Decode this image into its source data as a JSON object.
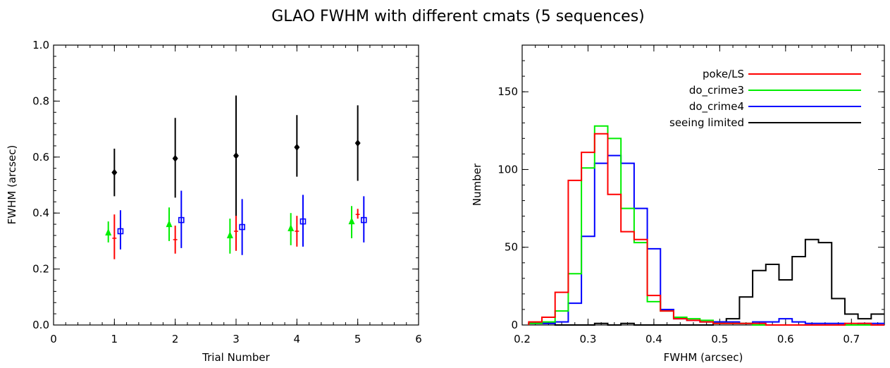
{
  "title": "GLAO FWHM with different cmats (5 sequences)",
  "colors": {
    "poke_ls": "#ff0000",
    "do_crime3": "#00ee00",
    "do_crime4": "#0000ff",
    "seeing": "#000000"
  },
  "chart_data": [
    {
      "type": "scatter",
      "title": "",
      "xlabel": "Trial Number",
      "ylabel": "FWHM (arcsec)",
      "xlim": [
        0,
        6
      ],
      "ylim": [
        0,
        1.0
      ],
      "xticks": [
        0,
        1,
        2,
        3,
        4,
        5,
        6
      ],
      "yticks": [
        0.0,
        0.2,
        0.4,
        0.6,
        0.8,
        1.0
      ],
      "ytick_labels": [
        "0.0",
        "0.2",
        "0.4",
        "0.6",
        "0.8",
        "1.0"
      ],
      "grid": false,
      "series": [
        {
          "color_key": "do_crime3",
          "marker": "triangle",
          "x": [
            0.9,
            1.9,
            2.9,
            3.9,
            4.9
          ],
          "y": [
            0.33,
            0.36,
            0.32,
            0.345,
            0.37
          ],
          "err_low": [
            0.295,
            0.3,
            0.255,
            0.285,
            0.31
          ],
          "err_high": [
            0.37,
            0.42,
            0.38,
            0.4,
            0.425
          ]
        },
        {
          "color_key": "poke_ls",
          "marker": "plus",
          "x": [
            1.0,
            2.0,
            3.0,
            4.0,
            5.0
          ],
          "y": [
            0.31,
            0.305,
            0.335,
            0.335,
            0.395
          ],
          "err_low": [
            0.235,
            0.255,
            0.265,
            0.28,
            0.38
          ],
          "err_high": [
            0.395,
            0.355,
            0.395,
            0.39,
            0.415
          ]
        },
        {
          "color_key": "do_crime4",
          "marker": "square",
          "x": [
            1.1,
            2.1,
            3.1,
            4.1,
            5.1
          ],
          "y": [
            0.335,
            0.375,
            0.35,
            0.37,
            0.375
          ],
          "err_low": [
            0.27,
            0.275,
            0.25,
            0.28,
            0.295
          ],
          "err_high": [
            0.41,
            0.48,
            0.45,
            0.465,
            0.46
          ]
        },
        {
          "color_key": "seeing",
          "marker": "diamond",
          "x": [
            1.0,
            2.0,
            3.0,
            4.0,
            5.0
          ],
          "y": [
            0.545,
            0.595,
            0.605,
            0.635,
            0.65
          ],
          "err_low": [
            0.46,
            0.455,
            0.39,
            0.53,
            0.515
          ],
          "err_high": [
            0.63,
            0.74,
            0.82,
            0.75,
            0.785
          ]
        }
      ]
    },
    {
      "type": "histogram",
      "title": "",
      "xlabel": "FWHM (arcsec)",
      "ylabel": "Number",
      "xlim": [
        0.2,
        0.75
      ],
      "ylim": [
        0,
        180
      ],
      "xticks": [
        0.2,
        0.3,
        0.4,
        0.5,
        0.6,
        0.7
      ],
      "xtick_labels": [
        "0.2",
        "0.3",
        "0.4",
        "0.5",
        "0.6",
        "0.7"
      ],
      "yticks": [
        0,
        50,
        100,
        150
      ],
      "grid": false,
      "legend_position": "top-right",
      "bin_edges": [
        0.21,
        0.23,
        0.25,
        0.27,
        0.29,
        0.31,
        0.33,
        0.35,
        0.37,
        0.39,
        0.41,
        0.43,
        0.45,
        0.47,
        0.49,
        0.51,
        0.53,
        0.55,
        0.57,
        0.59,
        0.61,
        0.63,
        0.65,
        0.67,
        0.69,
        0.71,
        0.73,
        0.75
      ],
      "series": [
        {
          "name": "poke/LS",
          "color_key": "poke_ls",
          "counts": [
            2,
            5,
            21,
            93,
            111,
            123,
            84,
            60,
            55,
            19,
            9,
            4,
            3,
            2,
            1,
            1,
            1,
            1,
            0,
            0,
            0,
            0,
            0,
            0,
            1,
            1,
            0
          ]
        },
        {
          "name": "do_crime3",
          "color_key": "do_crime3",
          "counts": [
            1,
            2,
            9,
            33,
            101,
            128,
            120,
            75,
            53,
            15,
            9,
            5,
            4,
            3,
            1,
            1,
            1,
            0,
            0,
            0,
            0,
            0,
            0,
            0,
            0,
            0,
            0
          ]
        },
        {
          "name": "do_crime4",
          "color_key": "do_crime4",
          "counts": [
            1,
            1,
            2,
            14,
            57,
            104,
            109,
            104,
            75,
            49,
            10,
            4,
            3,
            2,
            2,
            2,
            1,
            2,
            2,
            4,
            2,
            1,
            1,
            1,
            0,
            1,
            1
          ]
        },
        {
          "name": "seeing limited",
          "color_key": "seeing",
          "counts": [
            1,
            1,
            0,
            0,
            0,
            1,
            0,
            1,
            0,
            0,
            0,
            0,
            0,
            0,
            2,
            4,
            18,
            35,
            39,
            29,
            44,
            55,
            53,
            17,
            7,
            4,
            7
          ]
        }
      ]
    }
  ]
}
